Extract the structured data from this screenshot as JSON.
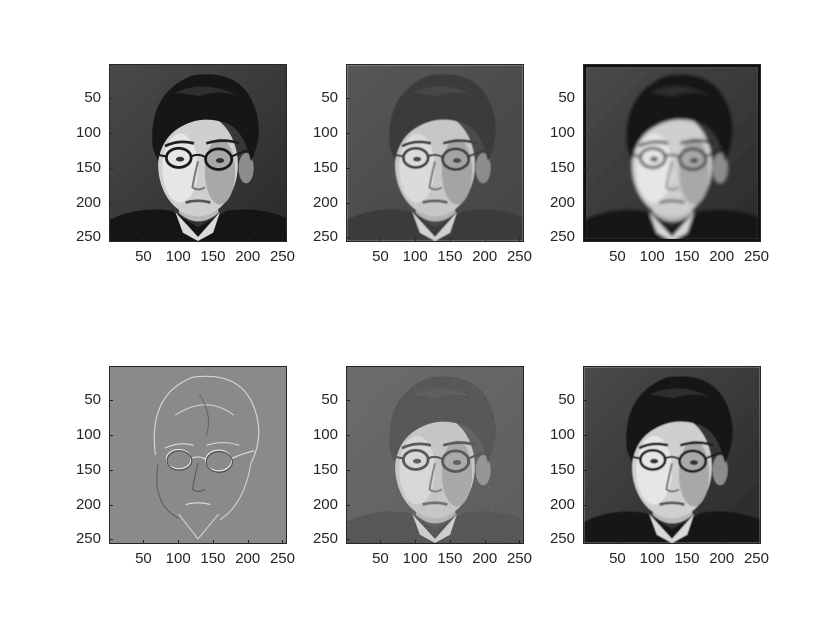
{
  "figure": {
    "panels": [
      {
        "id": "original",
        "filter": "none",
        "xticks": [
          "50",
          "100",
          "150",
          "200",
          "250"
        ],
        "yticks": [
          "50",
          "100",
          "150",
          "200",
          "250"
        ]
      },
      {
        "id": "smoothed",
        "filter": "soft",
        "xticks": [
          "50",
          "100",
          "150",
          "200",
          "250"
        ],
        "yticks": [
          "50",
          "100",
          "150",
          "200",
          "250"
        ]
      },
      {
        "id": "blurred",
        "filter": "blur",
        "xticks": [
          "50",
          "100",
          "150",
          "200",
          "250"
        ],
        "yticks": [
          "50",
          "100",
          "150",
          "200",
          "250"
        ]
      },
      {
        "id": "edges",
        "filter": "emboss",
        "xticks": [
          "50",
          "100",
          "150",
          "200",
          "250"
        ],
        "yticks": [
          "50",
          "100",
          "150",
          "200",
          "250"
        ]
      },
      {
        "id": "noisy",
        "filter": "noise",
        "xticks": [
          "50",
          "100",
          "150",
          "200",
          "250"
        ],
        "yticks": [
          "50",
          "100",
          "150",
          "200",
          "250"
        ]
      },
      {
        "id": "restored",
        "filter": "restore",
        "xticks": [
          "50",
          "100",
          "150",
          "200",
          "250"
        ],
        "yticks": [
          "50",
          "100",
          "150",
          "200",
          "250"
        ]
      }
    ],
    "colors": {
      "axis": "#262626",
      "background": "#ffffff",
      "emboss_gray": "#8a8a8a"
    }
  }
}
